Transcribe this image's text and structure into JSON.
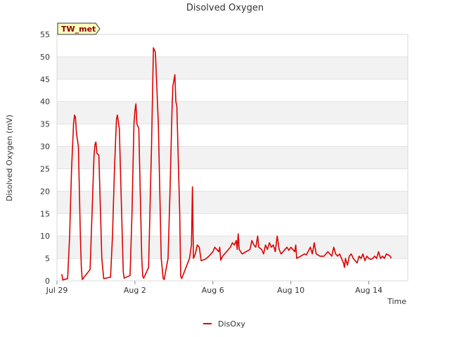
{
  "chart_data": {
    "type": "line",
    "title": "Disolved Oxygen",
    "xlabel": "Time",
    "ylabel": "Disolved Oxygen (mV)",
    "badge": "TW_met",
    "ylim": [
      0,
      55
    ],
    "yticks": [
      0,
      5,
      10,
      15,
      20,
      25,
      30,
      35,
      40,
      45,
      50,
      55
    ],
    "xlim": [
      0,
      18
    ],
    "xticks": [
      {
        "value": 0,
        "label": "Jul 29"
      },
      {
        "value": 4,
        "label": "Aug 2"
      },
      {
        "value": 8,
        "label": "Aug 6"
      },
      {
        "value": 12,
        "label": "Aug 10"
      },
      {
        "value": 16,
        "label": "Aug 14"
      }
    ],
    "grid": true,
    "legend_position": "bottom-center",
    "series": [
      {
        "name": "DisOxy",
        "color": "#dd0000",
        "points": [
          [
            0.25,
            1.5
          ],
          [
            0.3,
            0.2
          ],
          [
            0.55,
            0.5
          ],
          [
            0.65,
            10
          ],
          [
            0.75,
            25
          ],
          [
            0.85,
            35
          ],
          [
            0.9,
            37
          ],
          [
            0.95,
            36.5
          ],
          [
            1.0,
            33
          ],
          [
            1.1,
            30
          ],
          [
            1.2,
            10
          ],
          [
            1.25,
            3
          ],
          [
            1.3,
            0.3
          ],
          [
            1.7,
            2.5
          ],
          [
            1.8,
            15
          ],
          [
            1.9,
            28
          ],
          [
            1.95,
            30.5
          ],
          [
            2.0,
            31
          ],
          [
            2.05,
            28.5
          ],
          [
            2.15,
            28
          ],
          [
            2.3,
            5
          ],
          [
            2.4,
            0.5
          ],
          [
            2.75,
            0.8
          ],
          [
            2.85,
            10
          ],
          [
            2.95,
            25
          ],
          [
            3.05,
            36
          ],
          [
            3.1,
            37
          ],
          [
            3.2,
            34
          ],
          [
            3.35,
            10
          ],
          [
            3.4,
            2
          ],
          [
            3.45,
            0.6
          ],
          [
            3.75,
            1.2
          ],
          [
            3.85,
            15
          ],
          [
            3.95,
            35
          ],
          [
            4.0,
            38
          ],
          [
            4.05,
            39.5
          ],
          [
            4.1,
            35
          ],
          [
            4.2,
            34
          ],
          [
            4.35,
            5
          ],
          [
            4.4,
            1
          ],
          [
            4.45,
            0.6
          ],
          [
            4.7,
            3
          ],
          [
            4.85,
            30
          ],
          [
            4.95,
            52
          ],
          [
            5.05,
            51
          ],
          [
            5.2,
            35
          ],
          [
            5.35,
            5
          ],
          [
            5.45,
            0.5
          ],
          [
            5.5,
            0.3
          ],
          [
            5.7,
            5
          ],
          [
            5.8,
            20
          ],
          [
            5.9,
            38
          ],
          [
            5.95,
            43.5
          ],
          [
            6.05,
            46
          ],
          [
            6.1,
            40
          ],
          [
            6.15,
            39
          ],
          [
            6.3,
            15
          ],
          [
            6.35,
            1
          ],
          [
            6.4,
            0.5
          ],
          [
            6.8,
            5
          ],
          [
            6.9,
            8
          ],
          [
            6.95,
            21
          ],
          [
            7.0,
            5
          ],
          [
            7.1,
            6
          ],
          [
            7.2,
            8
          ],
          [
            7.3,
            7.5
          ],
          [
            7.4,
            4.5
          ],
          [
            7.6,
            4.8
          ],
          [
            7.8,
            5.5
          ],
          [
            8.0,
            6.5
          ],
          [
            8.1,
            7.5
          ],
          [
            8.2,
            7
          ],
          [
            8.3,
            6.5
          ],
          [
            8.35,
            7.5
          ],
          [
            8.4,
            4.6
          ],
          [
            8.5,
            5.5
          ],
          [
            8.7,
            6.5
          ],
          [
            8.9,
            7.5
          ],
          [
            9.0,
            8.5
          ],
          [
            9.1,
            8
          ],
          [
            9.2,
            9
          ],
          [
            9.25,
            7
          ],
          [
            9.3,
            10.5
          ],
          [
            9.35,
            7
          ],
          [
            9.5,
            6
          ],
          [
            9.7,
            6.5
          ],
          [
            9.9,
            7
          ],
          [
            10.0,
            9
          ],
          [
            10.1,
            8
          ],
          [
            10.2,
            7.5
          ],
          [
            10.3,
            10
          ],
          [
            10.35,
            7.5
          ],
          [
            10.5,
            7
          ],
          [
            10.6,
            6
          ],
          [
            10.7,
            8
          ],
          [
            10.8,
            7
          ],
          [
            10.9,
            8.5
          ],
          [
            11.0,
            7.5
          ],
          [
            11.1,
            8
          ],
          [
            11.2,
            6.5
          ],
          [
            11.3,
            10
          ],
          [
            11.4,
            7
          ],
          [
            11.5,
            6
          ],
          [
            11.6,
            6.5
          ],
          [
            11.7,
            7
          ],
          [
            11.8,
            7.5
          ],
          [
            11.9,
            6.8
          ],
          [
            12.0,
            7.5
          ],
          [
            12.1,
            7
          ],
          [
            12.2,
            6.5
          ],
          [
            12.25,
            8
          ],
          [
            12.3,
            5
          ],
          [
            12.5,
            5.5
          ],
          [
            12.7,
            6
          ],
          [
            12.8,
            5.8
          ],
          [
            13.0,
            7.5
          ],
          [
            13.1,
            6
          ],
          [
            13.2,
            8.5
          ],
          [
            13.3,
            6
          ],
          [
            13.5,
            5.5
          ],
          [
            13.7,
            5.5
          ],
          [
            13.9,
            6.5
          ],
          [
            14.0,
            6
          ],
          [
            14.1,
            5.5
          ],
          [
            14.2,
            7.5
          ],
          [
            14.3,
            6
          ],
          [
            14.4,
            5.5
          ],
          [
            14.5,
            6
          ],
          [
            14.6,
            5
          ],
          [
            14.7,
            4
          ],
          [
            14.75,
            3
          ],
          [
            14.8,
            5
          ],
          [
            14.9,
            3.5
          ],
          [
            15.0,
            5.5
          ],
          [
            15.1,
            6
          ],
          [
            15.2,
            5
          ],
          [
            15.3,
            4.5
          ],
          [
            15.4,
            4
          ],
          [
            15.5,
            5.5
          ],
          [
            15.6,
            5
          ],
          [
            15.7,
            6
          ],
          [
            15.8,
            4.5
          ],
          [
            15.9,
            5.5
          ],
          [
            16.0,
            5
          ],
          [
            16.1,
            4.8
          ],
          [
            16.2,
            5
          ],
          [
            16.3,
            5.5
          ],
          [
            16.4,
            5
          ],
          [
            16.5,
            6.5
          ],
          [
            16.6,
            5
          ],
          [
            16.7,
            5.5
          ],
          [
            16.8,
            5
          ],
          [
            16.9,
            6
          ],
          [
            17.0,
            5.8
          ],
          [
            17.1,
            5.5
          ],
          [
            17.15,
            5
          ]
        ]
      }
    ]
  }
}
